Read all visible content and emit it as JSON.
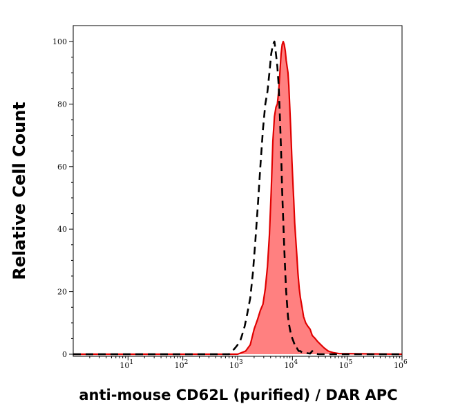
{
  "chart_data": {
    "type": "area",
    "xlabel": "anti-mouse CD62L (purified) / DAR APC",
    "ylabel": "Relative Cell Count",
    "xscale": "log",
    "xlim": [
      1,
      1000000
    ],
    "ylim": [
      0,
      100
    ],
    "y_ticks": [
      0,
      20,
      40,
      60,
      80,
      100
    ],
    "x_ticks": [
      {
        "value": 10,
        "base": "10",
        "exp": "1"
      },
      {
        "value": 100,
        "base": "10",
        "exp": "2"
      },
      {
        "value": 1000,
        "base": "10",
        "exp": "3"
      },
      {
        "value": 10000,
        "base": "10",
        "exp": "4"
      },
      {
        "value": 100000,
        "base": "10",
        "exp": "5"
      },
      {
        "value": 1000000,
        "base": "10",
        "exp": "6"
      }
    ],
    "grid": false,
    "series": [
      {
        "style": "filled",
        "color": "#e00000",
        "fill": "#ff8080",
        "x": [
          1,
          1000,
          1400,
          1700,
          2000,
          2300,
          2600,
          2900,
          3200,
          3500,
          3800,
          4100,
          4400,
          4700,
          5000,
          5300,
          5600,
          5900,
          6200,
          6500,
          6800,
          7100,
          7400,
          7700,
          8000,
          8300,
          8600,
          8900,
          9200,
          9500,
          9800,
          10200,
          10600,
          11000,
          11500,
          12000,
          12600,
          13300,
          14000,
          15000,
          16000,
          17500,
          19000,
          21000,
          23000,
          26000,
          29000,
          33000,
          38000,
          45000,
          55000,
          70000,
          1000000
        ],
        "y": [
          0,
          0,
          1,
          3,
          8,
          11,
          14,
          16,
          21,
          28,
          38,
          52,
          68,
          76,
          79,
          80,
          84,
          90,
          96,
          99,
          100,
          99,
          97,
          94,
          92,
          90,
          86,
          80,
          74,
          68,
          62,
          55,
          49,
          42,
          37,
          32,
          26,
          21,
          18,
          15,
          12,
          10,
          9,
          8,
          6,
          5,
          4,
          3,
          2,
          1,
          0.5,
          0.2,
          0
        ]
      },
      {
        "style": "dashed",
        "color": "#000000",
        "x": [
          1,
          700,
          800,
          900,
          1000,
          1100,
          1200,
          1350,
          1500,
          1700,
          1900,
          2100,
          2350,
          2600,
          2900,
          3200,
          3500,
          3800,
          4100,
          4400,
          4700,
          5000,
          5300,
          5600,
          5900,
          6200,
          6500,
          6800,
          7100,
          7400,
          7700,
          8000,
          8300,
          8600,
          9000,
          9500,
          10000,
          10500,
          11000,
          11500,
          12000,
          13000,
          14000,
          15000,
          17000,
          19000,
          21000,
          23000,
          26000,
          30000,
          1000000
        ],
        "y": [
          0,
          0,
          1,
          2,
          3,
          4,
          6,
          9,
          13,
          18,
          26,
          36,
          48,
          60,
          72,
          80,
          84,
          90,
          96,
          99,
          100,
          96,
          92,
          86,
          76,
          65,
          52,
          43,
          34,
          26,
          20,
          16,
          12,
          10,
          8,
          6,
          5,
          4,
          3,
          2,
          2,
          1,
          1,
          0.5,
          0.5,
          0.3,
          0.2,
          1,
          0.2,
          0,
          0
        ]
      }
    ]
  }
}
